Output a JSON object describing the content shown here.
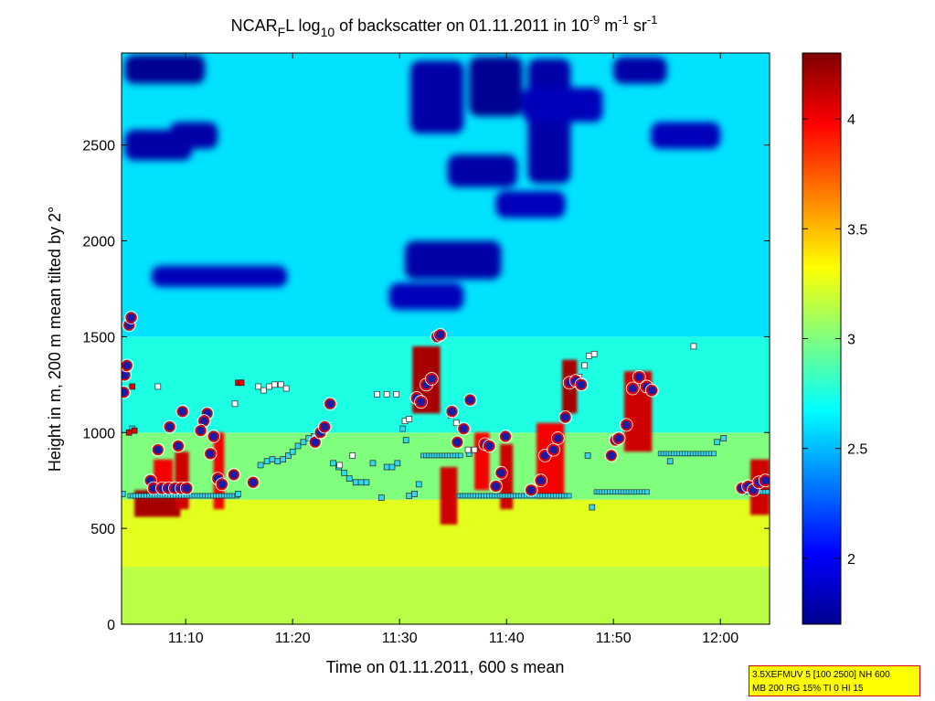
{
  "chart_data": {
    "type": "heatmap",
    "title": {
      "prefix": "NCAR",
      "prefix_sub": "F",
      "after_prefix": "L log",
      "log_sub": "10",
      "main": " of backscatter on 01.11.2011 in 10",
      "exp1": "-9",
      "unit1": " m",
      "exp2": "-1",
      "unit2": " sr",
      "exp3": "-1"
    },
    "xlabel": "Time on 01.11.2011, 600 s mean",
    "ylabel": "Height in m, 200 m mean tilted by 2°",
    "x_ticks": [
      "11:10",
      "11:20",
      "11:30",
      "11:40",
      "11:50",
      "12:00"
    ],
    "x_tick_values": [
      670,
      680,
      690,
      700,
      710,
      720
    ],
    "xlim": [
      664,
      724.6
    ],
    "y_ticks": [
      "0",
      "500",
      "1000",
      "1500",
      "2000",
      "2500"
    ],
    "y_tick_values": [
      0,
      500,
      1000,
      1500,
      2000,
      2500
    ],
    "ylim": [
      0,
      2980
    ],
    "colorbar": {
      "ticks": [
        "2",
        "2.5",
        "3",
        "3.5",
        "4"
      ],
      "tick_values": [
        2,
        2.5,
        3,
        3.5,
        4
      ],
      "range": [
        1.7,
        4.3
      ],
      "colormap": "jet"
    },
    "background_levels": [
      {
        "h0": 0,
        "h1": 300,
        "v": 3.15
      },
      {
        "h0": 300,
        "h1": 650,
        "v": 3.25
      },
      {
        "h0": 650,
        "h1": 1000,
        "v": 3.0
      },
      {
        "h0": 1000,
        "h1": 1500,
        "v": 2.75
      },
      {
        "h0": 1500,
        "h1": 2980,
        "v": 2.6
      }
    ],
    "low_backscatter_patches": [
      {
        "t0": 664.3,
        "t1": 671.8,
        "h0": 2820,
        "h1": 2970,
        "v": 1.75
      },
      {
        "t0": 664.3,
        "t1": 670.6,
        "h0": 2420,
        "h1": 2580,
        "v": 1.8
      },
      {
        "t0": 668.5,
        "t1": 673.0,
        "h0": 2480,
        "h1": 2620,
        "v": 1.8
      },
      {
        "t0": 666.8,
        "t1": 679.5,
        "h0": 1760,
        "h1": 1870,
        "v": 1.85
      },
      {
        "t0": 691.0,
        "t1": 696.0,
        "h0": 2560,
        "h1": 2940,
        "v": 1.8
      },
      {
        "t0": 696.5,
        "t1": 701.5,
        "h0": 2650,
        "h1": 2960,
        "v": 1.75
      },
      {
        "t0": 694.5,
        "t1": 701.0,
        "h0": 2280,
        "h1": 2450,
        "v": 1.8
      },
      {
        "t0": 699.0,
        "t1": 705.5,
        "h0": 2120,
        "h1": 2260,
        "v": 1.85
      },
      {
        "t0": 690.5,
        "t1": 699.5,
        "h0": 1800,
        "h1": 2000,
        "v": 1.8
      },
      {
        "t0": 689.0,
        "t1": 696.0,
        "h0": 1640,
        "h1": 1780,
        "v": 1.85
      },
      {
        "t0": 702.0,
        "t1": 706.0,
        "h0": 2300,
        "h1": 2950,
        "v": 1.8
      },
      {
        "t0": 701.5,
        "t1": 709.0,
        "h0": 2620,
        "h1": 2800,
        "v": 1.85
      },
      {
        "t0": 710.0,
        "t1": 715.0,
        "h0": 2820,
        "h1": 2960,
        "v": 1.8
      },
      {
        "t0": 713.5,
        "t1": 720.0,
        "h0": 2480,
        "h1": 2620,
        "v": 1.85
      }
    ],
    "aerosol_layer": [
      {
        "t0": 665.2,
        "t1": 669.5,
        "h0": 560,
        "h1": 700,
        "v": 4.2
      },
      {
        "t0": 667.0,
        "t1": 668.8,
        "h0": 700,
        "h1": 860,
        "v": 4.0
      },
      {
        "t0": 669.0,
        "t1": 670.3,
        "h0": 600,
        "h1": 900,
        "v": 4.1
      },
      {
        "t0": 672.6,
        "t1": 673.6,
        "h0": 600,
        "h1": 1000,
        "v": 4.0
      },
      {
        "t0": 691.2,
        "t1": 693.8,
        "h0": 1100,
        "h1": 1450,
        "v": 4.2
      },
      {
        "t0": 693.8,
        "t1": 695.4,
        "h0": 520,
        "h1": 820,
        "v": 4.1
      },
      {
        "t0": 697.0,
        "t1": 698.4,
        "h0": 700,
        "h1": 1000,
        "v": 4.0
      },
      {
        "t0": 699.4,
        "t1": 700.6,
        "h0": 600,
        "h1": 940,
        "v": 4.1
      },
      {
        "t0": 702.8,
        "t1": 705.4,
        "h0": 660,
        "h1": 1050,
        "v": 4.0
      },
      {
        "t0": 705.2,
        "t1": 706.6,
        "h0": 1100,
        "h1": 1380,
        "v": 4.2
      },
      {
        "t0": 711.0,
        "t1": 713.6,
        "h0": 900,
        "h1": 1320,
        "v": 4.1
      },
      {
        "t0": 722.8,
        "t1": 724.6,
        "h0": 570,
        "h1": 860,
        "v": 4.1
      }
    ],
    "markers_circle": [
      [
        664.2,
        1210
      ],
      [
        664.3,
        1300
      ],
      [
        664.5,
        1350
      ],
      [
        664.7,
        1560
      ],
      [
        664.9,
        1600
      ],
      [
        666.7,
        750
      ],
      [
        667.4,
        910
      ],
      [
        668.5,
        1030
      ],
      [
        669.3,
        930
      ],
      [
        669.7,
        1110
      ],
      [
        667.0,
        710
      ],
      [
        667.8,
        710
      ],
      [
        668.4,
        710
      ],
      [
        669.0,
        710
      ],
      [
        669.6,
        710
      ],
      [
        670.1,
        710
      ],
      [
        672.0,
        1100
      ],
      [
        671.7,
        1060
      ],
      [
        671.4,
        1010
      ],
      [
        672.6,
        980
      ],
      [
        672.3,
        890
      ],
      [
        673.0,
        760
      ],
      [
        673.4,
        730
      ],
      [
        674.5,
        780
      ],
      [
        676.3,
        740
      ],
      [
        682.1,
        950
      ],
      [
        682.6,
        1000
      ],
      [
        683.0,
        1030
      ],
      [
        683.5,
        1150
      ],
      [
        691.6,
        1180
      ],
      [
        692.0,
        1160
      ],
      [
        692.5,
        1250
      ],
      [
        693.0,
        1280
      ],
      [
        693.5,
        1500
      ],
      [
        693.8,
        1510
      ],
      [
        694.9,
        1110
      ],
      [
        695.4,
        950
      ],
      [
        696.0,
        1020
      ],
      [
        696.6,
        1170
      ],
      [
        698.0,
        940
      ],
      [
        698.4,
        930
      ],
      [
        699.0,
        720
      ],
      [
        699.5,
        790
      ],
      [
        699.9,
        980
      ],
      [
        702.3,
        700
      ],
      [
        703.2,
        750
      ],
      [
        703.6,
        880
      ],
      [
        704.4,
        910
      ],
      [
        704.8,
        970
      ],
      [
        705.5,
        1080
      ],
      [
        705.9,
        1260
      ],
      [
        706.5,
        1270
      ],
      [
        707.0,
        1250
      ],
      [
        709.8,
        880
      ],
      [
        710.2,
        960
      ],
      [
        710.5,
        970
      ],
      [
        711.2,
        1040
      ],
      [
        711.8,
        1230
      ],
      [
        712.4,
        1290
      ],
      [
        713.1,
        1240
      ],
      [
        713.6,
        1220
      ],
      [
        722.0,
        710
      ],
      [
        722.6,
        720
      ],
      [
        723.1,
        700
      ],
      [
        723.6,
        740
      ],
      [
        724.2,
        750
      ]
    ],
    "markers_cyan_sq": [
      [
        664.1,
        680
      ],
      [
        665.0,
        1020
      ],
      [
        674.9,
        680
      ],
      [
        677.0,
        830
      ],
      [
        677.6,
        850
      ],
      [
        678.1,
        860
      ],
      [
        678.6,
        850
      ],
      [
        679.1,
        860
      ],
      [
        679.6,
        880
      ],
      [
        680.0,
        900
      ],
      [
        680.5,
        930
      ],
      [
        681.0,
        950
      ],
      [
        681.5,
        970
      ],
      [
        682.0,
        980
      ],
      [
        683.8,
        840
      ],
      [
        684.3,
        820
      ],
      [
        684.8,
        790
      ],
      [
        685.3,
        760
      ],
      [
        685.9,
        740
      ],
      [
        686.4,
        740
      ],
      [
        686.9,
        740
      ],
      [
        687.5,
        840
      ],
      [
        688.3,
        660
      ],
      [
        688.8,
        820
      ],
      [
        689.3,
        820
      ],
      [
        689.8,
        840
      ],
      [
        690.3,
        1020
      ],
      [
        690.6,
        960
      ],
      [
        690.9,
        670
      ],
      [
        691.4,
        680
      ],
      [
        691.8,
        730
      ],
      [
        696.5,
        890
      ],
      [
        707.6,
        880
      ],
      [
        708.0,
        610
      ],
      [
        715.3,
        850
      ],
      [
        719.7,
        950
      ],
      [
        720.3,
        970
      ]
    ],
    "markers_white_sq": [
      [
        674.6,
        1150
      ],
      [
        676.8,
        1240
      ],
      [
        677.3,
        1220
      ],
      [
        677.8,
        1240
      ],
      [
        678.3,
        1250
      ],
      [
        678.9,
        1250
      ],
      [
        679.4,
        1230
      ],
      [
        684.4,
        830
      ],
      [
        685.6,
        880
      ],
      [
        687.9,
        1200
      ],
      [
        688.8,
        1200
      ],
      [
        689.7,
        1200
      ],
      [
        690.5,
        1060
      ],
      [
        690.9,
        1070
      ],
      [
        694.8,
        1090
      ],
      [
        695.3,
        1050
      ],
      [
        696.4,
        910
      ],
      [
        697.0,
        910
      ],
      [
        706.8,
        1290
      ],
      [
        707.3,
        1350
      ],
      [
        707.7,
        1400
      ],
      [
        708.2,
        1410
      ],
      [
        717.5,
        1450
      ],
      [
        667.4,
        1240
      ]
    ],
    "markers_red_sq": [
      [
        664.7,
        1000
      ],
      [
        665.0,
        1240
      ],
      [
        665.2,
        1010
      ],
      [
        674.9,
        1260
      ],
      [
        675.2,
        1260
      ]
    ],
    "cyan_runs": [
      {
        "t0": 664.8,
        "t1": 675.0,
        "h": 670
      },
      {
        "t0": 692.2,
        "t1": 695.8,
        "h": 880
      },
      {
        "t0": 695.6,
        "t1": 705.9,
        "h": 670
      },
      {
        "t0": 708.4,
        "t1": 713.2,
        "h": 690
      },
      {
        "t0": 714.4,
        "t1": 719.4,
        "h": 890
      },
      {
        "t0": 722.2,
        "t1": 724.6,
        "h": 690
      }
    ]
  },
  "info_box": {
    "line1": "3.5XEFMUV 5 [100 2500] NH 600",
    "line2": "MB 200 RG 15% TI 0 HI 15"
  }
}
